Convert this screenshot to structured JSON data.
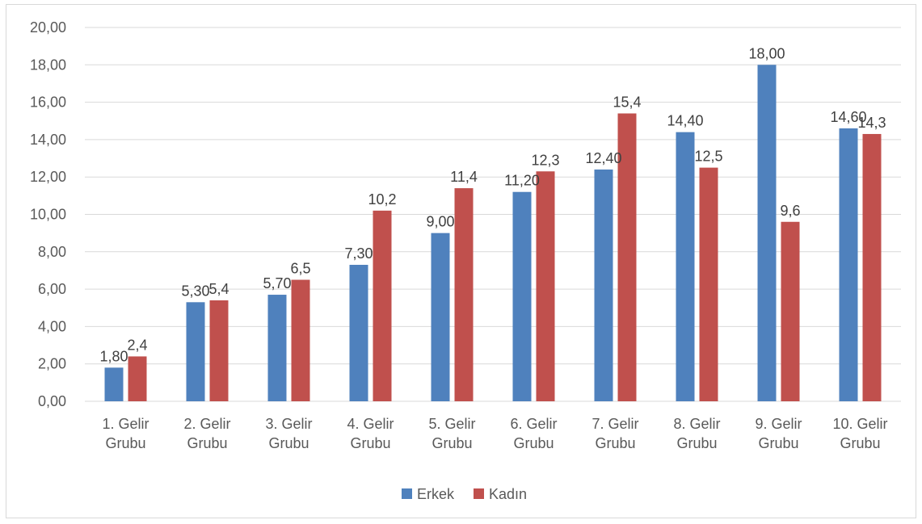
{
  "chart_data": {
    "type": "bar",
    "categories": [
      [
        "1. Gelir",
        "Grubu"
      ],
      [
        "2. Gelir",
        "Grubu"
      ],
      [
        "3. Gelir",
        "Grubu"
      ],
      [
        "4. Gelir",
        "Grubu"
      ],
      [
        "5. Gelir",
        "Grubu"
      ],
      [
        "6. Gelir",
        "Grubu"
      ],
      [
        "7. Gelir",
        "Grubu"
      ],
      [
        "8. Gelir",
        "Grubu"
      ],
      [
        "9. Gelir",
        "Grubu"
      ],
      [
        "10. Gelir",
        "Grubu"
      ]
    ],
    "series": [
      {
        "name": "Erkek",
        "color": "#4f81bd",
        "values": [
          1.8,
          5.3,
          5.7,
          7.3,
          9.0,
          11.2,
          12.4,
          14.4,
          18.0,
          14.6
        ],
        "labels": [
          "1,80",
          "5,30",
          "5,70",
          "7,30",
          "9,00",
          "11,20",
          "12,40",
          "14,40",
          "18,00",
          "14,60"
        ]
      },
      {
        "name": "Kadın",
        "color": "#c0504d",
        "values": [
          2.4,
          5.4,
          6.5,
          10.2,
          11.4,
          12.3,
          15.4,
          12.5,
          9.6,
          14.3
        ],
        "labels": [
          "2,4",
          "5,4",
          "6,5",
          "10,2",
          "11,4",
          "12,3",
          "15,4",
          "12,5",
          "9,6",
          "14,3"
        ]
      }
    ],
    "y_ticks": [
      "0,00",
      "2,00",
      "4,00",
      "6,00",
      "8,00",
      "10,00",
      "12,00",
      "14,00",
      "16,00",
      "18,00",
      "20,00"
    ],
    "ylim": [
      0,
      20
    ],
    "y_step": 2,
    "grid": true,
    "legend_position": "bottom"
  }
}
